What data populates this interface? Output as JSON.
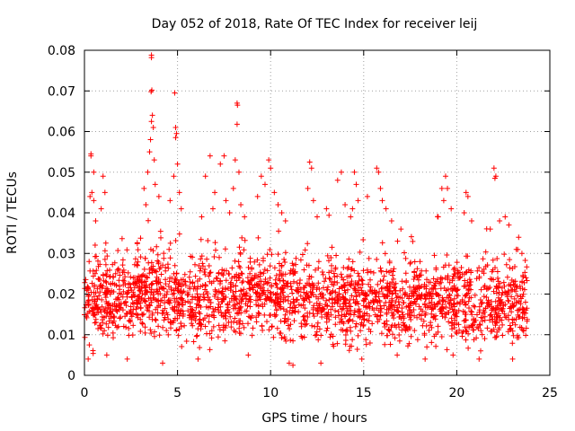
{
  "chart_data": {
    "type": "scatter",
    "title": "Day 052 of 2018, Rate Of TEC Index for receiver leij",
    "xlabel": "GPS time / hours",
    "ylabel": "ROTI / TECUs",
    "xlim": [
      0,
      25
    ],
    "ylim": [
      0,
      0.08
    ],
    "x_ticks": [
      0,
      5,
      10,
      15,
      20,
      25
    ],
    "y_ticks": [
      0,
      0.01,
      0.02,
      0.03,
      0.04,
      0.05,
      0.06,
      0.07,
      0.08
    ],
    "x_tick_labels": [
      "0",
      "5",
      "10",
      "15",
      "20",
      "25"
    ],
    "y_tick_labels": [
      "0",
      "0.01",
      "0.02",
      "0.03",
      "0.04",
      "0.05",
      "0.06",
      "0.07",
      "0.08"
    ],
    "grid": true,
    "marker": "+",
    "series": [
      {
        "name": "ROTI",
        "color": "#ff0000",
        "x_range_observed": [
          0,
          23.8
        ],
        "bulk_range": [
          0.005,
          0.03
        ],
        "points": [
          [
            0.35,
            0.054
          ],
          [
            0.35,
            0.0545
          ],
          [
            0.3,
            0.044
          ],
          [
            0.4,
            0.045
          ],
          [
            0.5,
            0.05
          ],
          [
            0.5,
            0.043
          ],
          [
            1.0,
            0.049
          ],
          [
            1.1,
            0.045
          ],
          [
            0.9,
            0.041
          ],
          [
            0.6,
            0.038
          ],
          [
            3.6,
            0.0788
          ],
          [
            3.6,
            0.0782
          ],
          [
            3.62,
            0.0702
          ],
          [
            3.58,
            0.0698
          ],
          [
            3.65,
            0.064
          ],
          [
            3.6,
            0.0625
          ],
          [
            3.7,
            0.061
          ],
          [
            3.55,
            0.058
          ],
          [
            3.5,
            0.055
          ],
          [
            3.75,
            0.053
          ],
          [
            3.4,
            0.05
          ],
          [
            3.2,
            0.046
          ],
          [
            3.8,
            0.047
          ],
          [
            4.0,
            0.044
          ],
          [
            3.3,
            0.042
          ],
          [
            4.85,
            0.0695
          ],
          [
            4.9,
            0.061
          ],
          [
            4.95,
            0.0595
          ],
          [
            4.9,
            0.0585
          ],
          [
            5.0,
            0.052
          ],
          [
            4.8,
            0.049
          ],
          [
            5.1,
            0.045
          ],
          [
            4.6,
            0.043
          ],
          [
            5.2,
            0.041
          ],
          [
            6.75,
            0.054
          ],
          [
            7.5,
            0.054
          ],
          [
            7.3,
            0.052
          ],
          [
            6.5,
            0.049
          ],
          [
            7.0,
            0.045
          ],
          [
            7.6,
            0.043
          ],
          [
            6.9,
            0.041
          ],
          [
            6.3,
            0.039
          ],
          [
            7.8,
            0.04
          ],
          [
            8.2,
            0.067
          ],
          [
            8.22,
            0.0665
          ],
          [
            8.2,
            0.0618
          ],
          [
            8.1,
            0.053
          ],
          [
            8.3,
            0.05
          ],
          [
            8.0,
            0.046
          ],
          [
            8.4,
            0.042
          ],
          [
            8.6,
            0.039
          ],
          [
            9.5,
            0.049
          ],
          [
            9.7,
            0.047
          ],
          [
            9.9,
            0.053
          ],
          [
            10.0,
            0.051
          ],
          [
            10.2,
            0.045
          ],
          [
            10.4,
            0.042
          ],
          [
            9.3,
            0.044
          ],
          [
            10.6,
            0.04
          ],
          [
            10.8,
            0.038
          ],
          [
            12.1,
            0.0525
          ],
          [
            12.2,
            0.051
          ],
          [
            12.0,
            0.046
          ],
          [
            12.3,
            0.043
          ],
          [
            12.5,
            0.039
          ],
          [
            13.0,
            0.041
          ],
          [
            13.6,
            0.048
          ],
          [
            13.8,
            0.05
          ],
          [
            14.0,
            0.042
          ],
          [
            14.3,
            0.039
          ],
          [
            14.5,
            0.05
          ],
          [
            14.6,
            0.047
          ],
          [
            14.7,
            0.043
          ],
          [
            14.4,
            0.041
          ],
          [
            15.2,
            0.044
          ],
          [
            15.7,
            0.051
          ],
          [
            15.8,
            0.05
          ],
          [
            15.9,
            0.046
          ],
          [
            16.2,
            0.041
          ],
          [
            16.5,
            0.038
          ],
          [
            16.0,
            0.043
          ],
          [
            17.0,
            0.036
          ],
          [
            19.2,
            0.046
          ],
          [
            19.4,
            0.049
          ],
          [
            19.5,
            0.046
          ],
          [
            19.3,
            0.043
          ],
          [
            19.7,
            0.041
          ],
          [
            19.0,
            0.039
          ],
          [
            20.5,
            0.045
          ],
          [
            20.6,
            0.044
          ],
          [
            20.4,
            0.04
          ],
          [
            20.8,
            0.038
          ],
          [
            22.0,
            0.051
          ],
          [
            22.1,
            0.049
          ],
          [
            22.05,
            0.0485
          ],
          [
            22.3,
            0.038
          ],
          [
            22.6,
            0.039
          ],
          [
            22.8,
            0.037
          ],
          [
            21.8,
            0.036
          ],
          [
            23.2,
            0.031
          ],
          [
            23.5,
            0.03
          ],
          [
            0.2,
            0.004
          ],
          [
            1.2,
            0.005
          ],
          [
            2.3,
            0.004
          ],
          [
            4.2,
            0.003
          ],
          [
            6.1,
            0.004
          ],
          [
            8.8,
            0.005
          ],
          [
            11.0,
            0.003
          ],
          [
            11.2,
            0.0025
          ],
          [
            12.7,
            0.003
          ],
          [
            14.9,
            0.004
          ],
          [
            16.8,
            0.005
          ],
          [
            18.3,
            0.004
          ],
          [
            19.8,
            0.005
          ],
          [
            21.2,
            0.004
          ],
          [
            23.0,
            0.004
          ]
        ]
      }
    ]
  }
}
